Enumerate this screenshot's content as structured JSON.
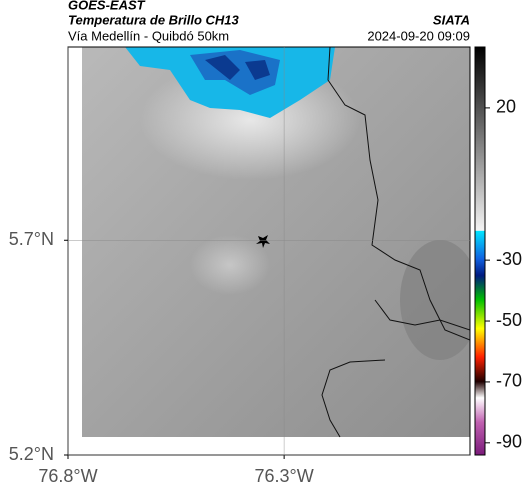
{
  "header": {
    "title": "GOES-EAST",
    "subtitle": "Temperatura de Brillo CH13",
    "route": "Vía Medellín - Quibdó 50km",
    "source": "SIATA",
    "datetime": "2024-09-20 09:09"
  },
  "map": {
    "xlim": [
      -76.8,
      -75.87
    ],
    "ylim": [
      5.2,
      6.15
    ],
    "xticks": [
      {
        "value": -76.8,
        "label": "76.8°W"
      },
      {
        "value": -76.3,
        "label": "76.3°W"
      }
    ],
    "yticks": [
      {
        "value": 5.7,
        "label": "5.7°N"
      },
      {
        "value": 5.2,
        "label": "5.2°N"
      }
    ],
    "grid": true
  },
  "colorbar": {
    "lim": [
      40,
      -94
    ],
    "ticks": [
      20,
      -30,
      -50,
      -70,
      -90
    ]
  }
}
